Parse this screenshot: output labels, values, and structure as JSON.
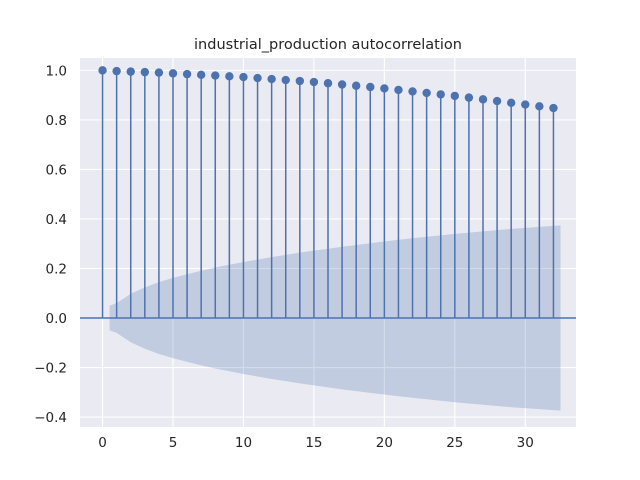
{
  "chart_data": {
    "type": "stem",
    "title": "industrial_production autocorrelation",
    "xlabel": "",
    "ylabel": "",
    "xlim": [
      -1.6,
      33.6
    ],
    "ylim": [
      -0.44,
      1.05
    ],
    "x_ticks": [
      0,
      5,
      10,
      15,
      20,
      25,
      30
    ],
    "x_tick_labels": [
      "0",
      "5",
      "10",
      "15",
      "20",
      "25",
      "30"
    ],
    "y_ticks": [
      -0.4,
      -0.2,
      0.0,
      0.2,
      0.4,
      0.6,
      0.8,
      1.0
    ],
    "y_tick_labels": [
      "−0.4",
      "−0.2",
      "0.0",
      "0.2",
      "0.4",
      "0.6",
      "0.8",
      "1.0"
    ],
    "grid": true,
    "colors": {
      "background": "#eaeaf2",
      "stem": "#4c72b0",
      "confidence_band": "#4c72b0"
    },
    "lags": [
      0,
      1,
      2,
      3,
      4,
      5,
      6,
      7,
      8,
      9,
      10,
      11,
      12,
      13,
      14,
      15,
      16,
      17,
      18,
      19,
      20,
      21,
      22,
      23,
      24,
      25,
      26,
      27,
      28,
      29,
      30,
      31,
      32
    ],
    "acf": [
      1.0,
      0.997,
      0.995,
      0.993,
      0.991,
      0.988,
      0.985,
      0.982,
      0.979,
      0.976,
      0.973,
      0.969,
      0.965,
      0.961,
      0.957,
      0.953,
      0.948,
      0.943,
      0.938,
      0.933,
      0.927,
      0.921,
      0.915,
      0.909,
      0.903,
      0.897,
      0.89,
      0.883,
      0.876,
      0.869,
      0.862,
      0.855,
      0.848
    ],
    "confidence_band": {
      "x": [
        0.5,
        1,
        2,
        3,
        4,
        5,
        6,
        7,
        8,
        9,
        10,
        11,
        12,
        13,
        14,
        15,
        16,
        17,
        18,
        19,
        20,
        21,
        22,
        23,
        24,
        25,
        26,
        27,
        28,
        29,
        30,
        31,
        32,
        32.5
      ],
      "upper": [
        0.05,
        0.06,
        0.098,
        0.124,
        0.145,
        0.162,
        0.177,
        0.191,
        0.204,
        0.215,
        0.226,
        0.236,
        0.246,
        0.255,
        0.264,
        0.272,
        0.28,
        0.288,
        0.295,
        0.302,
        0.309,
        0.316,
        0.322,
        0.328,
        0.334,
        0.34,
        0.345,
        0.35,
        0.355,
        0.36,
        0.364,
        0.368,
        0.372,
        0.374
      ]
    }
  }
}
